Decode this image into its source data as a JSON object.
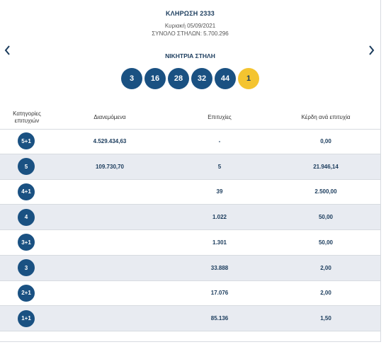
{
  "draw": {
    "title": "ΚΛΗΡΩΣΗ 2333",
    "date": "Κυριακή 05/09/2021",
    "total_columns": "ΣΥΝΟΛΟ ΣΤΗΛΩΝ: 5.700.296",
    "winning_label": "ΝΙΚΗΤΡΙΑ ΣΤΗΛΗ",
    "numbers": [
      "3",
      "16",
      "28",
      "32",
      "44"
    ],
    "joker": "1"
  },
  "nav": {
    "prev_icon": "chevron-left-icon",
    "next_icon": "chevron-right-icon"
  },
  "table": {
    "headers": {
      "category_line1": "Κατηγορίες",
      "category_line2": "επιτυχιών",
      "distributed": "Διανεμόμενα",
      "winners": "Επιτυχίες",
      "prize": "Κέρδη ανά επιτυχία"
    },
    "rows": [
      {
        "category": "5+1",
        "distributed": "4.529.434,63",
        "winners": "-",
        "prize": "0,00"
      },
      {
        "category": "5",
        "distributed": "109.730,70",
        "winners": "5",
        "prize": "21.946,14"
      },
      {
        "category": "4+1",
        "distributed": "",
        "winners": "39",
        "prize": "2.500,00"
      },
      {
        "category": "4",
        "distributed": "",
        "winners": "1.022",
        "prize": "50,00"
      },
      {
        "category": "3+1",
        "distributed": "",
        "winners": "1.301",
        "prize": "50,00"
      },
      {
        "category": "3",
        "distributed": "",
        "winners": "33.888",
        "prize": "2,00"
      },
      {
        "category": "2+1",
        "distributed": "",
        "winners": "17.076",
        "prize": "2,00"
      },
      {
        "category": "1+1",
        "distributed": "",
        "winners": "85.136",
        "prize": "1,50"
      }
    ]
  },
  "colors": {
    "primary": "#1a5182",
    "joker": "#f4c430",
    "alt_row": "#e8ebf1"
  }
}
